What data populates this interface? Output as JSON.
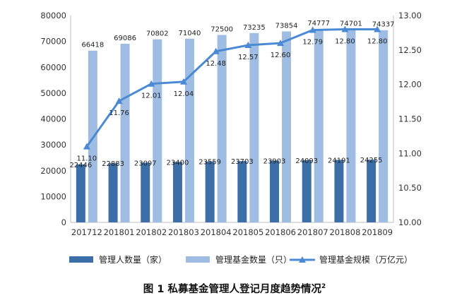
{
  "chart_data": {
    "type": "bar",
    "categories": [
      "201712",
      "201801",
      "201802",
      "201803",
      "201804",
      "201805",
      "201806",
      "201807",
      "201808",
      "201809"
    ],
    "series": [
      {
        "name": "管理人数量（家）",
        "type": "bar",
        "axis": "left",
        "color": "#3c6ea8",
        "values": [
          22446,
          22883,
          23097,
          23400,
          23559,
          23703,
          23903,
          24093,
          24191,
          24255
        ]
      },
      {
        "name": "管理基金数量（只）",
        "type": "bar",
        "axis": "left",
        "color": "#9fbde3",
        "values": [
          66418,
          69086,
          70802,
          71040,
          72500,
          73235,
          73854,
          74777,
          74701,
          74337
        ]
      },
      {
        "name": "管理基金规模（万亿元）",
        "type": "line",
        "axis": "right",
        "color": "#4a8ad4",
        "values": [
          11.1,
          11.76,
          12.01,
          12.04,
          12.48,
          12.57,
          12.6,
          12.79,
          12.8,
          12.8
        ],
        "labels": [
          "11.10",
          "11.76",
          "12.01",
          "12.04",
          "12.48",
          "12.57",
          "12.60",
          "12.79",
          "12.80",
          "12.80"
        ]
      }
    ],
    "y_left": {
      "min": 0,
      "max": 80000,
      "ticks": [
        "0",
        "10000",
        "20000",
        "30000",
        "40000",
        "50000",
        "60000",
        "70000",
        "80000"
      ]
    },
    "y_right": {
      "min": 10.0,
      "max": 13.0,
      "ticks": [
        "10.00",
        "10.50",
        "11.00",
        "11.50",
        "12.00",
        "12.50",
        "13.00"
      ]
    },
    "grid": false,
    "legend_position": "bottom",
    "caption": "图 1  私募基金管理人登记月度趋势情况",
    "caption_superscript": "2"
  }
}
